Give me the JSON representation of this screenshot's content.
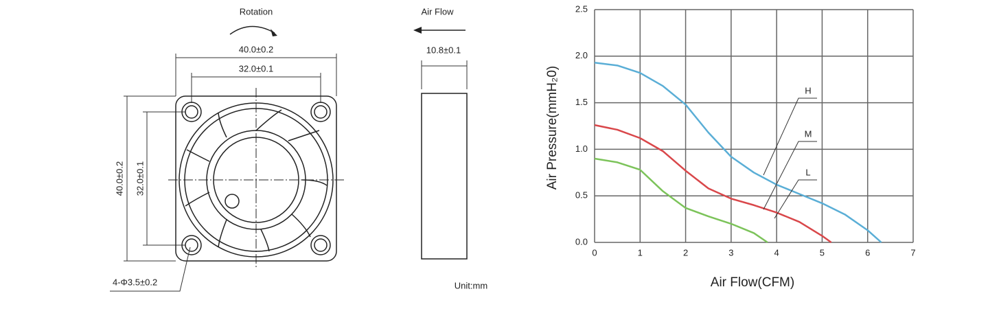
{
  "drawing": {
    "rotation": "Rotation",
    "air_flow": "Air Flow",
    "width_outer": "40.0±0.2",
    "width_inner": "32.0±0.1",
    "height_outer": "40.0±0.2",
    "height_inner": "32.0±0.1",
    "hole": "4-Φ3.5±0.2",
    "thickness": "10.8±0.1",
    "unit": "Unit:mm"
  },
  "chart_data": {
    "type": "line",
    "xlabel": "Air Flow(CFM)",
    "ylabel": "Air Pressure(mmH₂0)",
    "xlim": [
      0,
      7
    ],
    "xticks": [
      0,
      1,
      2,
      3,
      4,
      5,
      6,
      7
    ],
    "ylim": [
      0,
      2.5
    ],
    "yticks": [
      {
        "value": 0,
        "label": "0.0"
      },
      0.5,
      {
        "value": 1,
        "label": "1.0"
      },
      1.5,
      {
        "value": 2,
        "label": "2.0"
      },
      2.5
    ],
    "grid": true,
    "series": [
      {
        "name": "H",
        "color": "#5aaed6",
        "x": [
          0,
          0.5,
          1,
          1.5,
          2,
          2.5,
          3,
          3.5,
          4,
          4.5,
          5,
          5.5,
          6,
          6.3
        ],
        "values": [
          1.93,
          1.9,
          1.82,
          1.68,
          1.48,
          1.18,
          0.92,
          0.75,
          0.62,
          0.52,
          0.42,
          0.3,
          0.13,
          0
        ]
      },
      {
        "name": "M",
        "color": "#d9474a",
        "x": [
          0,
          0.5,
          1,
          1.5,
          2,
          2.5,
          3,
          3.5,
          4,
          4.5,
          5,
          5.2
        ],
        "values": [
          1.26,
          1.21,
          1.12,
          0.98,
          0.77,
          0.58,
          0.47,
          0.4,
          0.32,
          0.22,
          0.07,
          0
        ]
      },
      {
        "name": "L",
        "color": "#7cc35a",
        "x": [
          0,
          0.5,
          1,
          1.5,
          2,
          2.5,
          3,
          3.5,
          3.8
        ],
        "values": [
          0.9,
          0.86,
          0.78,
          0.55,
          0.37,
          0.28,
          0.2,
          0.1,
          0
        ]
      }
    ]
  }
}
